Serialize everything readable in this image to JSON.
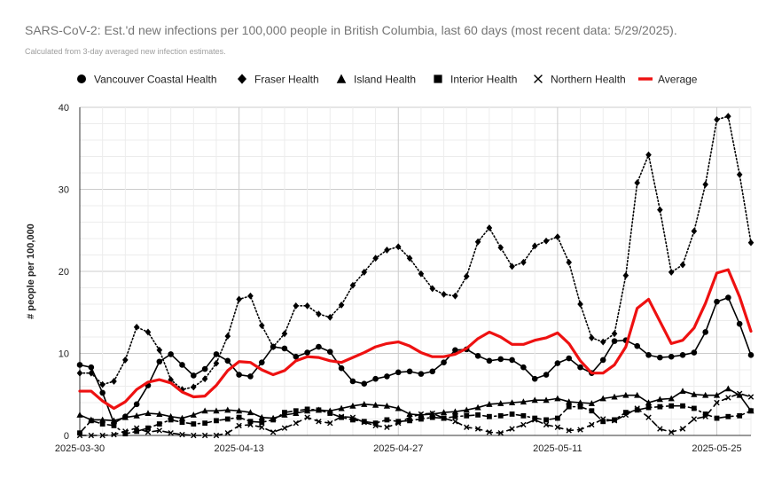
{
  "title": "SARS-CoV-2: Est.'d new infections per 100,000 people in British Columbia, last 60 days (most recent data: 5/29/2025).",
  "subtitle": "Calculated from 3-day averaged new infection estimates.",
  "chart_data": {
    "type": "line",
    "title": "SARS-CoV-2: Est.'d new infections per 100,000 people in British Columbia, last 60 days (most recent data: 5/29/2025).",
    "subtitle": "Calculated from 3-day averaged new infection estimates.",
    "xlabel": "",
    "ylabel": "# people per 100,000",
    "ylim": [
      0,
      40
    ],
    "yticks": [
      0,
      10,
      20,
      30,
      40
    ],
    "x_start": "2025-03-30",
    "x_tick_labels": [
      "2025-03-30",
      "2025-04-13",
      "2025-04-27",
      "2025-05-11",
      "2025-05-25"
    ],
    "x_tick_index": [
      0,
      14,
      28,
      42,
      56
    ],
    "grid": true,
    "legend_position": "top",
    "series": [
      {
        "name": "Vancouver Coastal Health",
        "marker": "circle",
        "style": "solid",
        "color": "#000000",
        "values": [
          8.6,
          8.3,
          5.2,
          1.5,
          2.3,
          3.8,
          6.1,
          9.0,
          9.9,
          8.6,
          7.3,
          8.1,
          9.9,
          9.1,
          7.4,
          7.2,
          8.9,
          10.8,
          10.6,
          9.6,
          10.1,
          10.8,
          10.2,
          8.2,
          6.6,
          6.3,
          6.9,
          7.2,
          7.7,
          7.8,
          7.5,
          7.8,
          8.9,
          10.4,
          10.5,
          9.7,
          9.1,
          9.3,
          9.2,
          8.3,
          6.9,
          7.4,
          8.8,
          9.4,
          8.3,
          7.6,
          9.2,
          11.5,
          11.6,
          10.9,
          9.8,
          9.5,
          9.6,
          9.8,
          10.1,
          12.6,
          16.3,
          16.8,
          13.6,
          9.8
        ]
      },
      {
        "name": "Fraser Health",
        "marker": "diamond",
        "style": "dotted",
        "color": "#000000",
        "values": [
          7.6,
          7.6,
          6.2,
          6.6,
          9.2,
          13.2,
          12.6,
          10.4,
          6.8,
          5.6,
          5.9,
          6.9,
          8.8,
          12.1,
          16.6,
          17.0,
          13.4,
          10.8,
          12.4,
          15.8,
          15.8,
          14.8,
          14.4,
          15.9,
          18.3,
          19.9,
          21.6,
          22.6,
          23.0,
          21.6,
          19.7,
          17.9,
          17.2,
          17.0,
          19.4,
          23.6,
          25.3,
          22.9,
          20.6,
          21.1,
          23.1,
          23.7,
          24.2,
          21.1,
          16.0,
          11.9,
          11.4,
          12.4,
          19.5,
          30.8,
          34.2,
          27.5,
          19.9,
          20.8,
          24.9,
          30.6,
          38.5,
          38.9,
          31.8,
          23.5
        ]
      },
      {
        "name": "Island Health",
        "marker": "triangle",
        "style": "solid",
        "color": "#000000",
        "values": [
          2.5,
          1.9,
          1.9,
          1.8,
          2.2,
          2.4,
          2.7,
          2.6,
          2.3,
          2.1,
          2.5,
          3.0,
          3.0,
          3.1,
          3.0,
          2.8,
          2.2,
          2.1,
          2.5,
          2.7,
          3.0,
          3.1,
          3.0,
          3.3,
          3.6,
          3.8,
          3.7,
          3.6,
          3.3,
          2.6,
          2.5,
          2.6,
          2.8,
          2.9,
          3.1,
          3.4,
          3.8,
          3.9,
          4.0,
          4.1,
          4.3,
          4.3,
          4.5,
          4.1,
          4.0,
          3.9,
          4.5,
          4.7,
          4.9,
          4.9,
          4.0,
          4.4,
          4.5,
          5.4,
          5.0,
          4.9,
          4.9,
          5.7,
          4.9,
          3.0
        ]
      },
      {
        "name": "Interior Health",
        "marker": "square",
        "style": "dashdot",
        "color": "#000000",
        "values": [
          0.3,
          1.8,
          1.4,
          1.2,
          0.2,
          0.5,
          0.9,
          1.4,
          1.9,
          1.6,
          1.4,
          1.5,
          1.8,
          2.0,
          2.2,
          1.7,
          1.6,
          1.9,
          2.8,
          3.0,
          3.2,
          3.1,
          2.7,
          2.2,
          1.9,
          1.7,
          1.5,
          1.9,
          1.7,
          1.8,
          2.0,
          2.2,
          2.1,
          2.3,
          2.4,
          2.5,
          2.3,
          2.4,
          2.6,
          2.4,
          2.1,
          1.9,
          2.1,
          3.5,
          3.5,
          3.0,
          1.7,
          1.9,
          2.8,
          3.1,
          3.4,
          3.5,
          3.6,
          3.6,
          3.3,
          2.6,
          2.1,
          2.3,
          2.4,
          3.0
        ]
      },
      {
        "name": "Northern Health",
        "marker": "x",
        "style": "dashed",
        "color": "#000000",
        "values": [
          0.0,
          0.0,
          0.0,
          0.1,
          0.5,
          0.9,
          0.4,
          0.6,
          0.3,
          0.1,
          0.0,
          0.0,
          0.0,
          0.3,
          1.2,
          1.3,
          1.0,
          0.4,
          0.9,
          1.5,
          2.2,
          1.7,
          1.5,
          2.3,
          2.2,
          1.6,
          1.2,
          1.0,
          1.5,
          2.2,
          2.6,
          2.7,
          2.1,
          1.7,
          1.0,
          0.8,
          0.4,
          0.3,
          0.8,
          1.3,
          1.9,
          1.3,
          1.0,
          0.6,
          0.7,
          1.3,
          2.0,
          1.8,
          2.5,
          3.3,
          2.2,
          0.8,
          0.4,
          0.8,
          2.0,
          2.3,
          4.0,
          4.6,
          5.1,
          4.7
        ]
      },
      {
        "name": "Average",
        "marker": "none",
        "style": "solid",
        "color": "#ee1111",
        "values": [
          5.4,
          5.4,
          4.2,
          3.3,
          4.1,
          5.6,
          6.5,
          6.8,
          6.4,
          5.3,
          4.7,
          4.8,
          6.1,
          7.9,
          9.0,
          8.9,
          8.0,
          7.4,
          7.9,
          9.1,
          9.6,
          9.5,
          9.1,
          8.9,
          9.5,
          10.1,
          10.8,
          11.2,
          11.4,
          10.9,
          10.1,
          9.6,
          9.6,
          9.9,
          10.6,
          11.8,
          12.6,
          12.0,
          11.1,
          11.1,
          11.6,
          11.9,
          12.5,
          11.2,
          9.1,
          7.6,
          7.6,
          8.6,
          10.8,
          15.5,
          16.6,
          13.9,
          11.2,
          11.6,
          13.1,
          16.1,
          19.8,
          20.2,
          16.9,
          12.7
        ]
      }
    ]
  }
}
